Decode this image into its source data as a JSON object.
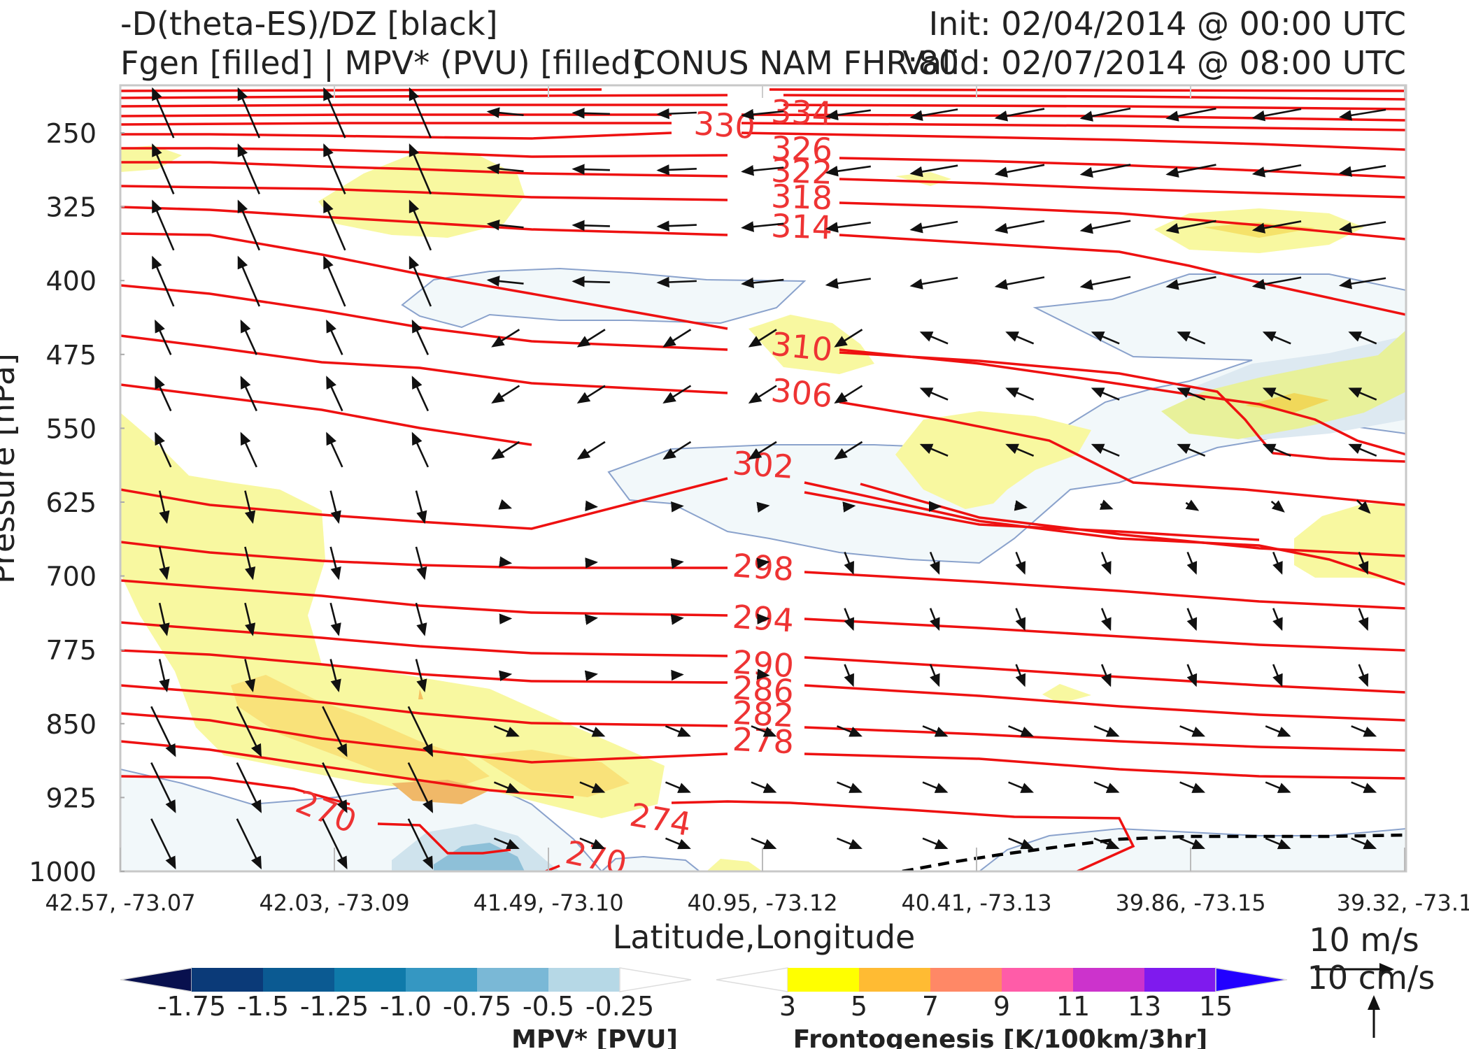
{
  "header": {
    "title_line1": "-D(theta-ES)/DZ [black]",
    "title_line2": "Fgen [filled] | MPV* (PVU) [filled]",
    "center": "CONUS NAM FHR:80",
    "init": "Init: 02/04/2014 @ 00:00 UTC",
    "valid": "Valid: 02/07/2014 @ 08:00 UTC"
  },
  "chart_data": {
    "type": "cross-section",
    "xlabel": "Latitude,Longitude",
    "ylabel": "Pressure [hPa]",
    "x_ticks": [
      "42.57, -73.07",
      "42.03, -73.09",
      "41.49, -73.10",
      "40.95, -73.12",
      "40.41, -73.13",
      "39.86, -73.15",
      "39.32, -73.1"
    ],
    "y_ticks": [
      250,
      325,
      400,
      475,
      550,
      625,
      700,
      775,
      850,
      925,
      1000
    ],
    "ylim": [
      1000,
      200
    ],
    "theta_contours": {
      "color": "#ee1111",
      "levels": [
        270,
        274,
        278,
        282,
        286,
        290,
        294,
        298,
        302,
        306,
        310,
        314,
        318,
        322,
        326,
        330,
        334
      ],
      "labels": [
        {
          "text": "270",
          "x": 0.16,
          "p": 940,
          "rot": 22
        },
        {
          "text": "274",
          "x": 0.42,
          "p": 948,
          "rot": 10
        },
        {
          "text": "270",
          "x": 0.37,
          "p": 987,
          "rot": 12
        },
        {
          "text": "278",
          "x": 0.5,
          "p": 868,
          "rot": 3
        },
        {
          "text": "282",
          "x": 0.5,
          "p": 841,
          "rot": 3
        },
        {
          "text": "286",
          "x": 0.5,
          "p": 816,
          "rot": 4
        },
        {
          "text": "290",
          "x": 0.5,
          "p": 790,
          "rot": 4
        },
        {
          "text": "294",
          "x": 0.5,
          "p": 744,
          "rot": 4
        },
        {
          "text": "298",
          "x": 0.5,
          "p": 692,
          "rot": 4
        },
        {
          "text": "302",
          "x": 0.5,
          "p": 588,
          "rot": 4
        },
        {
          "text": "306",
          "x": 0.53,
          "p": 515,
          "rot": 6
        },
        {
          "text": "310",
          "x": 0.53,
          "p": 468,
          "rot": 6
        },
        {
          "text": "314",
          "x": 0.53,
          "p": 346,
          "rot": 2
        },
        {
          "text": "318",
          "x": 0.53,
          "p": 316,
          "rot": 2
        },
        {
          "text": "322",
          "x": 0.53,
          "p": 290,
          "rot": 2
        },
        {
          "text": "326",
          "x": 0.53,
          "p": 267,
          "rot": 2
        },
        {
          "text": "330",
          "x": 0.47,
          "p": 243,
          "rot": 4
        },
        {
          "text": "334",
          "x": 0.53,
          "p": 230,
          "rot": 2
        }
      ]
    },
    "wind_vectors": {
      "reference_horizontal": "10 m/s",
      "reference_vertical": "10 cm/s"
    },
    "mpv_colorbar": {
      "label": "MPV* [PVU]",
      "ticks": [
        "-1.75",
        "-1.5",
        "-1.25",
        "-1.0",
        "-0.75",
        "-0.5",
        "-0.25"
      ],
      "colors": [
        "#08104e",
        "#0b3a78",
        "#0b5a92",
        "#0f7aaa",
        "#3597c2",
        "#7ab8d6",
        "#b6d8e6",
        "#ffffff"
      ]
    },
    "fgen_colorbar": {
      "label": "Frontogenesis [K/100km/3hr]",
      "ticks": [
        "3",
        "5",
        "7",
        "9",
        "11",
        "13",
        "15"
      ],
      "colors": [
        "#ffffff",
        "#ffff00",
        "#ffbb33",
        "#ff8866",
        "#ff5ca8",
        "#cc33cc",
        "#7f1aee",
        "#2200ff"
      ]
    }
  }
}
